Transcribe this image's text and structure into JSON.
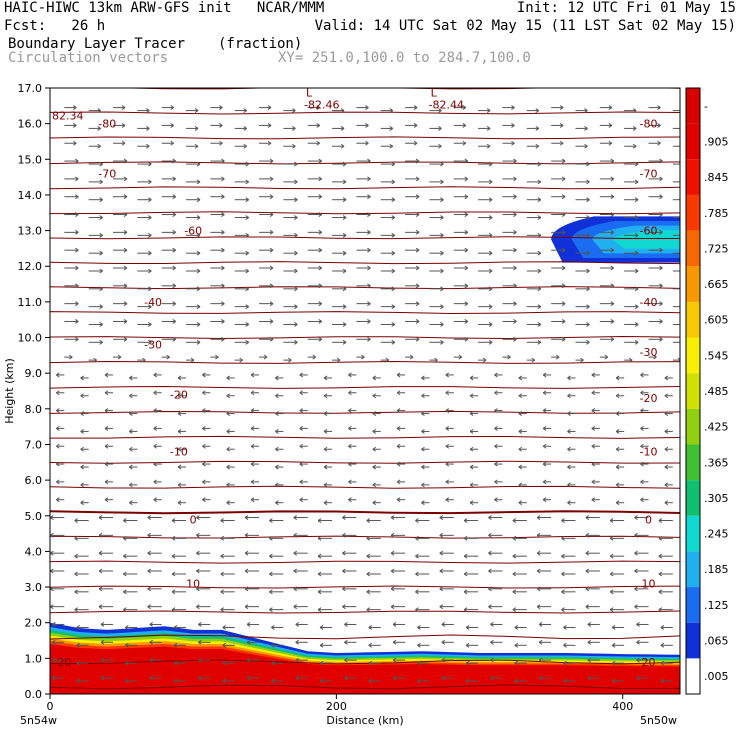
{
  "header": {
    "title": "HAIC-HIWC 13km ARW-GFS init   NCAR/MMM",
    "init": "Init: 12 UTC Fri 01 May 15",
    "fcst": "Fcst:   26 h",
    "valid": "Valid: 14 UTC Sat 02 May 15 (11 LST Sat 02 May 15)",
    "field": "Boundary Layer Tracer",
    "field_units": "(fraction)",
    "vectors": "Circulation vectors",
    "xy": "XY= 251.0,100.0 to 284.7,100.0"
  },
  "chart_data": {
    "type": "heatmap",
    "title": "Boundary Layer Tracer (fraction)",
    "xlabel": "Distance (km)",
    "ylabel": "Height (km)",
    "xlim": [
      0,
      440
    ],
    "ylim": [
      0,
      17
    ],
    "x_ticks": [
      0,
      200,
      400
    ],
    "y_ticks": [
      0.0,
      1.0,
      2.0,
      3.0,
      4.0,
      5.0,
      6.0,
      7.0,
      8.0,
      9.0,
      10.0,
      11.0,
      12.0,
      13.0,
      14.0,
      15.0,
      16.0,
      17.0
    ],
    "x_end_labels": [
      "5n54w",
      "5n50w"
    ],
    "colorbar": {
      "labels": [
        ".005",
        ".065",
        ".125",
        ".185",
        ".245",
        ".305",
        ".365",
        ".425",
        ".485",
        ".545",
        ".605",
        ".665",
        ".725",
        ".785",
        ".845",
        ".905",
        "-"
      ],
      "colors": [
        "#ffffff",
        "#1030d8",
        "#1a6cf0",
        "#20b0f0",
        "#10d8d0",
        "#10c070",
        "#40c030",
        "#90d010",
        "#d0e000",
        "#f8f000",
        "#f8c800",
        "#f89800",
        "#f86800",
        "#f83a00",
        "#f01000",
        "#e00000",
        "#d80000"
      ]
    },
    "contour_labels": [
      {
        "text": "-80",
        "x": 40,
        "z": 16.0
      },
      {
        "text": "-80",
        "x": 418,
        "z": 16.0
      },
      {
        "text": "-70",
        "x": 40,
        "z": 14.6
      },
      {
        "text": "-70",
        "x": 418,
        "z": 14.6
      },
      {
        "text": "-60",
        "x": 100,
        "z": 13.0
      },
      {
        "text": "-60",
        "x": 418,
        "z": 13.0
      },
      {
        "text": "-40",
        "x": 72,
        "z": 11.0
      },
      {
        "text": "-40",
        "x": 418,
        "z": 11.0
      },
      {
        "text": "-30",
        "x": 72,
        "z": 9.8
      },
      {
        "text": "-30",
        "x": 418,
        "z": 9.6
      },
      {
        "text": "-20",
        "x": 90,
        "z": 8.4
      },
      {
        "text": "-20",
        "x": 418,
        "z": 8.3
      },
      {
        "text": "-10",
        "x": 90,
        "z": 6.8
      },
      {
        "text": "-10",
        "x": 418,
        "z": 6.8
      },
      {
        "text": "0",
        "x": 100,
        "z": 4.9
      },
      {
        "text": "0",
        "x": 418,
        "z": 4.9
      },
      {
        "text": "10",
        "x": 100,
        "z": 3.1
      },
      {
        "text": "10",
        "x": 418,
        "z": 3.1
      },
      {
        "text": "20",
        "x": 10,
        "z": 0.9
      },
      {
        "text": "20",
        "x": 418,
        "z": 0.9
      }
    ],
    "minima": [
      {
        "text": "L",
        "value": "-82.46",
        "x": 176,
        "z": 16.7
      },
      {
        "text": "L",
        "value": "-82.44",
        "x": 263,
        "z": 16.7
      },
      {
        "text": "",
        "value": "82.34",
        "x": 0,
        "z": 16.4
      }
    ],
    "tracer_top_km": [
      [
        0,
        2.0
      ],
      [
        20,
        1.85
      ],
      [
        40,
        1.8
      ],
      [
        60,
        1.85
      ],
      [
        80,
        1.9
      ],
      [
        100,
        1.8
      ],
      [
        120,
        1.8
      ],
      [
        140,
        1.6
      ],
      [
        160,
        1.4
      ],
      [
        180,
        1.2
      ],
      [
        200,
        1.15
      ],
      [
        260,
        1.2
      ],
      [
        300,
        1.15
      ],
      [
        360,
        1.15
      ],
      [
        400,
        1.12
      ],
      [
        440,
        1.1
      ]
    ],
    "upper_tracer": {
      "x_start": 350,
      "x_end": 440,
      "z_bottom": 12.1,
      "z_top": 13.4
    }
  }
}
